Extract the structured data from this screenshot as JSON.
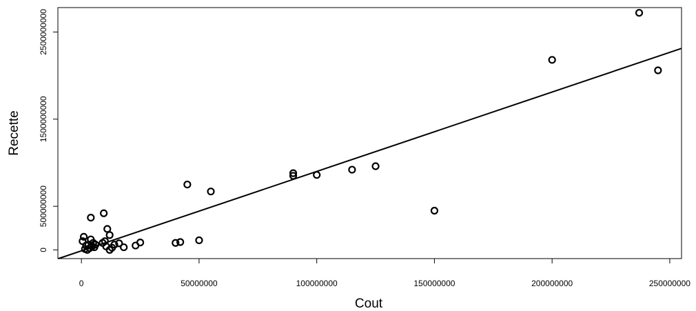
{
  "chart_data": {
    "type": "scatter",
    "xlabel": "Cout",
    "ylabel": "Recette",
    "xlim": [
      -10000000,
      255000000
    ],
    "ylim": [
      -100000000,
      2780000000
    ],
    "x_ticks": [
      {
        "value": 0,
        "label": "0"
      },
      {
        "value": 50000000,
        "label": "50000000"
      },
      {
        "value": 100000000,
        "label": "100000000"
      },
      {
        "value": 150000000,
        "label": "150000000"
      },
      {
        "value": 200000000,
        "label": "200000000"
      },
      {
        "value": 250000000,
        "label": "250000000"
      }
    ],
    "y_ticks": [
      {
        "value": 0,
        "label": "0"
      },
      {
        "value": 500000000,
        "label": "500000000"
      },
      {
        "value": 1500000000,
        "label": "1500000000"
      },
      {
        "value": 2500000000,
        "label": "2500000000"
      }
    ],
    "regression_line": {
      "intercept": -11000000,
      "slope": 9.11
    },
    "points": [
      {
        "x": 237000000,
        "y": 2720000000
      },
      {
        "x": 245000000,
        "y": 2060000000
      },
      {
        "x": 200000000,
        "y": 2180000000
      },
      {
        "x": 150000000,
        "y": 450000000
      },
      {
        "x": 125000000,
        "y": 960000000
      },
      {
        "x": 115000000,
        "y": 920000000
      },
      {
        "x": 100000000,
        "y": 860000000
      },
      {
        "x": 90000000,
        "y": 880000000
      },
      {
        "x": 90000000,
        "y": 850000000
      },
      {
        "x": 55000000,
        "y": 670000000
      },
      {
        "x": 45000000,
        "y": 750000000
      },
      {
        "x": 50000000,
        "y": 110000000
      },
      {
        "x": 42000000,
        "y": 90000000
      },
      {
        "x": 40000000,
        "y": 80000000
      },
      {
        "x": 25000000,
        "y": 85000000
      },
      {
        "x": 23000000,
        "y": 50000000
      },
      {
        "x": 18000000,
        "y": 30000000
      },
      {
        "x": 16000000,
        "y": 75000000
      },
      {
        "x": 14000000,
        "y": 60000000
      },
      {
        "x": 13000000,
        "y": 25000000
      },
      {
        "x": 12000000,
        "y": 0
      },
      {
        "x": 12000000,
        "y": 170000000
      },
      {
        "x": 11000000,
        "y": 240000000
      },
      {
        "x": 10500000,
        "y": 40000000
      },
      {
        "x": 10000000,
        "y": 100000000
      },
      {
        "x": 9500000,
        "y": 420000000
      },
      {
        "x": 9000000,
        "y": 80000000
      },
      {
        "x": 6000000,
        "y": 60000000
      },
      {
        "x": 5500000,
        "y": 30000000
      },
      {
        "x": 5000000,
        "y": 80000000
      },
      {
        "x": 4500000,
        "y": 40000000
      },
      {
        "x": 4000000,
        "y": 370000000
      },
      {
        "x": 4000000,
        "y": 120000000
      },
      {
        "x": 3500000,
        "y": 20000000
      },
      {
        "x": 3000000,
        "y": 60000000
      },
      {
        "x": 2500000,
        "y": 0
      },
      {
        "x": 2000000,
        "y": 50000000
      },
      {
        "x": 1500000,
        "y": 10000000
      },
      {
        "x": 1000000,
        "y": 150000000
      },
      {
        "x": 500000,
        "y": 100000000
      }
    ]
  }
}
